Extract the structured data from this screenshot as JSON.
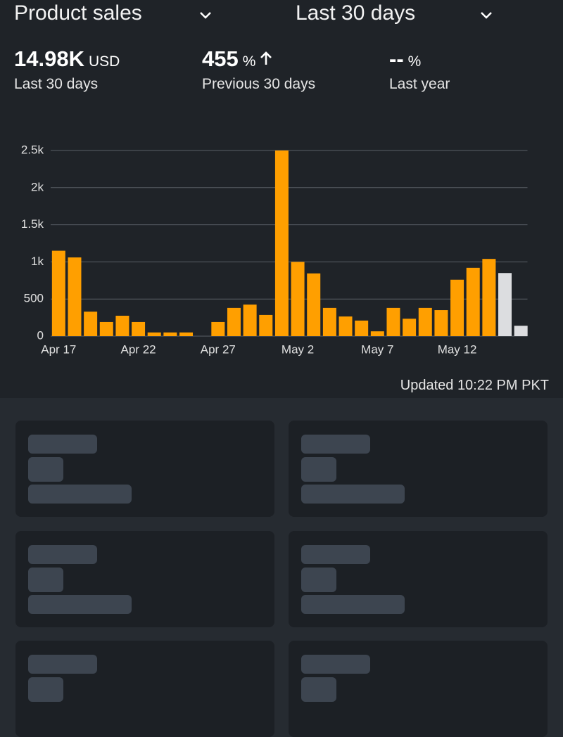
{
  "header": {
    "metric_select": "Product sales",
    "range_select": "Last 30 days"
  },
  "stats": [
    {
      "value": "14.98K",
      "unit": "USD",
      "label": "Last 30 days"
    },
    {
      "value": "455",
      "unit": "%",
      "label": "Previous 30 days"
    },
    {
      "value": "--",
      "unit": "%",
      "label": "Last year"
    }
  ],
  "updated": "Updated 10:22 PM PKT",
  "chart_data": {
    "type": "bar",
    "categories": [
      "Apr 17",
      null,
      null,
      null,
      null,
      "Apr 22",
      null,
      null,
      null,
      null,
      "Apr 27",
      null,
      null,
      null,
      null,
      "May 2",
      null,
      null,
      null,
      null,
      "May 7",
      null,
      null,
      null,
      null,
      "May 12",
      null,
      null,
      null,
      null
    ],
    "values": [
      1150,
      1060,
      330,
      190,
      275,
      190,
      50,
      50,
      50,
      0,
      190,
      380,
      425,
      285,
      2500,
      1000,
      845,
      380,
      265,
      210,
      65,
      380,
      235,
      380,
      350,
      760,
      920,
      1040,
      850,
      140
    ],
    "colors": [
      "#ff9f00",
      "#ff9f00",
      "#ff9f00",
      "#ff9f00",
      "#ff9f00",
      "#ff9f00",
      "#ff9f00",
      "#ff9f00",
      "#ff9f00",
      "#ff9f00",
      "#ff9f00",
      "#ff9f00",
      "#ff9f00",
      "#ff9f00",
      "#ff9f00",
      "#ff9f00",
      "#ff9f00",
      "#ff9f00",
      "#ff9f00",
      "#ff9f00",
      "#ff9f00",
      "#ff9f00",
      "#ff9f00",
      "#ff9f00",
      "#ff9f00",
      "#ff9f00",
      "#ff9f00",
      "#ff9f00",
      "#dcdde0",
      "#dcdde0"
    ],
    "ylim": [
      0,
      2500
    ],
    "yticks": [
      0,
      500,
      {
        "value": 1000,
        "label": "1k"
      },
      {
        "value": 1500,
        "label": "1.5k"
      },
      {
        "value": 2000,
        "label": "2k"
      },
      {
        "value": 2500,
        "label": "2.5k"
      }
    ],
    "grid": true
  }
}
